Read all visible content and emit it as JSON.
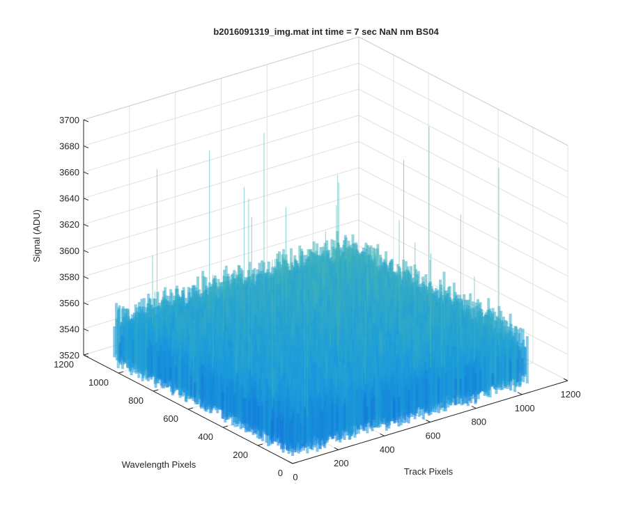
{
  "chart_data": {
    "type": "surface3d",
    "title": "b2016091319_img.mat int time = 7 sec  NaN nm BS04",
    "xlabel": "Track Pixels",
    "ylabel": "Wavelength Pixels",
    "zlabel": "Signal (ADU)",
    "xlim": [
      0,
      1200
    ],
    "ylim": [
      0,
      1200
    ],
    "zlim": [
      3520,
      3700
    ],
    "xticks": [
      "0",
      "200",
      "400",
      "600",
      "800",
      "1000",
      "1200"
    ],
    "yticks": [
      "0",
      "200",
      "400",
      "600",
      "800",
      "1000",
      "1200"
    ],
    "zticks": [
      "3520",
      "3540",
      "3560",
      "3580",
      "3600",
      "3620",
      "3640",
      "3660",
      "3680",
      "3700"
    ],
    "surface": {
      "x_extent": [
        1,
        1024
      ],
      "y_extent": [
        1,
        1024
      ],
      "z_mean": 3549,
      "z_noise_range": [
        3525,
        3605
      ],
      "z_spike_max": 3690,
      "colormap": "parula"
    },
    "grid": true,
    "colors": {
      "low": "#0b47d6",
      "mid": "#1a9cdc",
      "high": "#64c69a",
      "axis": "#262626",
      "grid": "#e0e0e0"
    }
  }
}
